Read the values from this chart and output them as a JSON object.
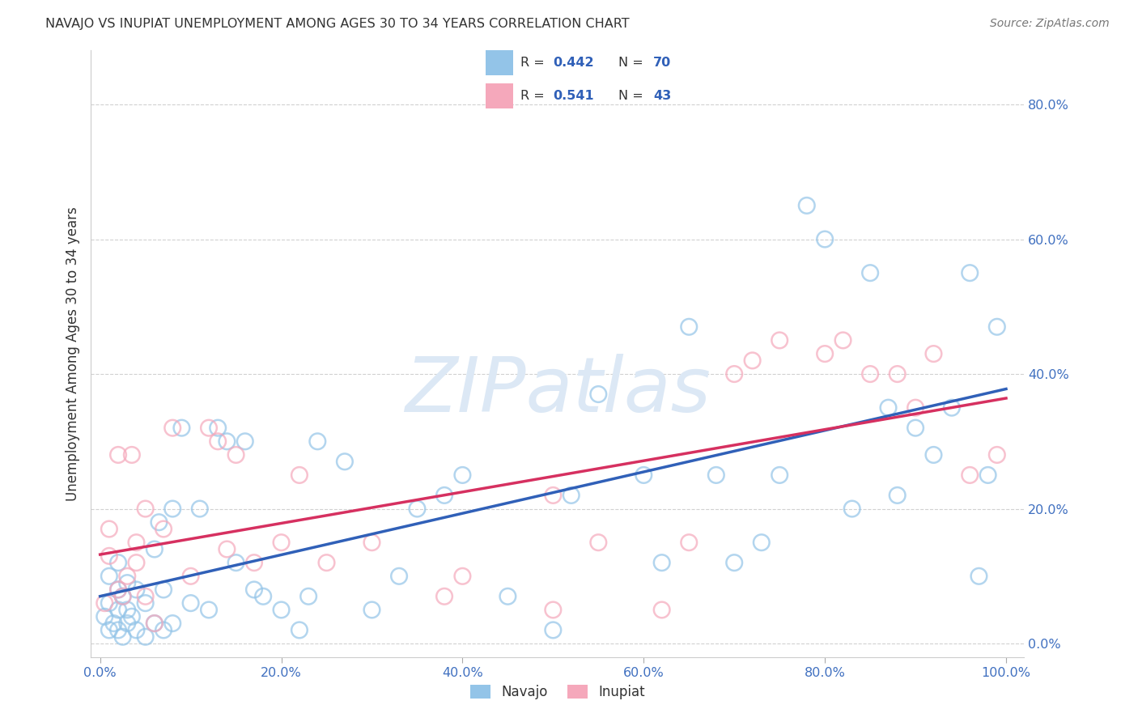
{
  "title": "NAVAJO VS INUPIAT UNEMPLOYMENT AMONG AGES 30 TO 34 YEARS CORRELATION CHART",
  "source": "Source: ZipAtlas.com",
  "ylabel": "Unemployment Among Ages 30 to 34 years",
  "xlim": [
    -0.01,
    1.02
  ],
  "ylim": [
    -0.02,
    0.88
  ],
  "xticks": [
    0.0,
    0.2,
    0.4,
    0.6,
    0.8,
    1.0
  ],
  "yticks": [
    0.0,
    0.2,
    0.4,
    0.6,
    0.8
  ],
  "xticklabels": [
    "0.0%",
    "20.0%",
    "40.0%",
    "60.0%",
    "80.0%",
    "100.0%"
  ],
  "yticklabels": [
    "0.0%",
    "20.0%",
    "40.0%",
    "60.0%",
    "80.0%"
  ],
  "navajo_R": 0.442,
  "navajo_N": 70,
  "inupiat_R": 0.541,
  "inupiat_N": 43,
  "navajo_color": "#93c4e8",
  "inupiat_color": "#f5a8bb",
  "navajo_line_color": "#3060b8",
  "inupiat_line_color": "#d63060",
  "background_color": "#ffffff",
  "grid_color": "#cccccc",
  "tick_color": "#4070c0",
  "title_color": "#333333",
  "source_color": "#777777",
  "ylabel_color": "#333333",
  "navajo_x": [
    0.005,
    0.01,
    0.01,
    0.01,
    0.015,
    0.02,
    0.02,
    0.02,
    0.02,
    0.025,
    0.025,
    0.03,
    0.03,
    0.03,
    0.035,
    0.04,
    0.04,
    0.05,
    0.05,
    0.06,
    0.06,
    0.065,
    0.07,
    0.07,
    0.08,
    0.08,
    0.09,
    0.1,
    0.11,
    0.12,
    0.13,
    0.14,
    0.15,
    0.16,
    0.17,
    0.18,
    0.2,
    0.22,
    0.23,
    0.24,
    0.27,
    0.3,
    0.33,
    0.35,
    0.38,
    0.4,
    0.45,
    0.5,
    0.52,
    0.55,
    0.6,
    0.62,
    0.65,
    0.68,
    0.7,
    0.73,
    0.75,
    0.78,
    0.8,
    0.83,
    0.85,
    0.87,
    0.88,
    0.9,
    0.92,
    0.94,
    0.96,
    0.97,
    0.98,
    0.99
  ],
  "navajo_y": [
    0.04,
    0.02,
    0.06,
    0.1,
    0.03,
    0.02,
    0.05,
    0.08,
    0.12,
    0.01,
    0.07,
    0.03,
    0.05,
    0.09,
    0.04,
    0.02,
    0.08,
    0.01,
    0.06,
    0.03,
    0.14,
    0.18,
    0.02,
    0.08,
    0.03,
    0.2,
    0.32,
    0.06,
    0.2,
    0.05,
    0.32,
    0.3,
    0.12,
    0.3,
    0.08,
    0.07,
    0.05,
    0.02,
    0.07,
    0.3,
    0.27,
    0.05,
    0.1,
    0.2,
    0.22,
    0.25,
    0.07,
    0.02,
    0.22,
    0.37,
    0.25,
    0.12,
    0.47,
    0.25,
    0.12,
    0.15,
    0.25,
    0.65,
    0.6,
    0.2,
    0.55,
    0.35,
    0.22,
    0.32,
    0.28,
    0.35,
    0.55,
    0.1,
    0.25,
    0.47
  ],
  "inupiat_x": [
    0.005,
    0.01,
    0.01,
    0.02,
    0.02,
    0.025,
    0.03,
    0.035,
    0.04,
    0.04,
    0.05,
    0.05,
    0.06,
    0.07,
    0.08,
    0.1,
    0.12,
    0.13,
    0.14,
    0.15,
    0.17,
    0.2,
    0.22,
    0.25,
    0.3,
    0.38,
    0.4,
    0.5,
    0.5,
    0.55,
    0.62,
    0.65,
    0.7,
    0.72,
    0.75,
    0.8,
    0.82,
    0.85,
    0.88,
    0.9,
    0.92,
    0.96,
    0.99
  ],
  "inupiat_y": [
    0.06,
    0.17,
    0.13,
    0.08,
    0.28,
    0.07,
    0.1,
    0.28,
    0.12,
    0.15,
    0.07,
    0.2,
    0.03,
    0.17,
    0.32,
    0.1,
    0.32,
    0.3,
    0.14,
    0.28,
    0.12,
    0.15,
    0.25,
    0.12,
    0.15,
    0.07,
    0.1,
    0.05,
    0.22,
    0.15,
    0.05,
    0.15,
    0.4,
    0.42,
    0.45,
    0.43,
    0.45,
    0.4,
    0.4,
    0.35,
    0.43,
    0.25,
    0.28
  ]
}
